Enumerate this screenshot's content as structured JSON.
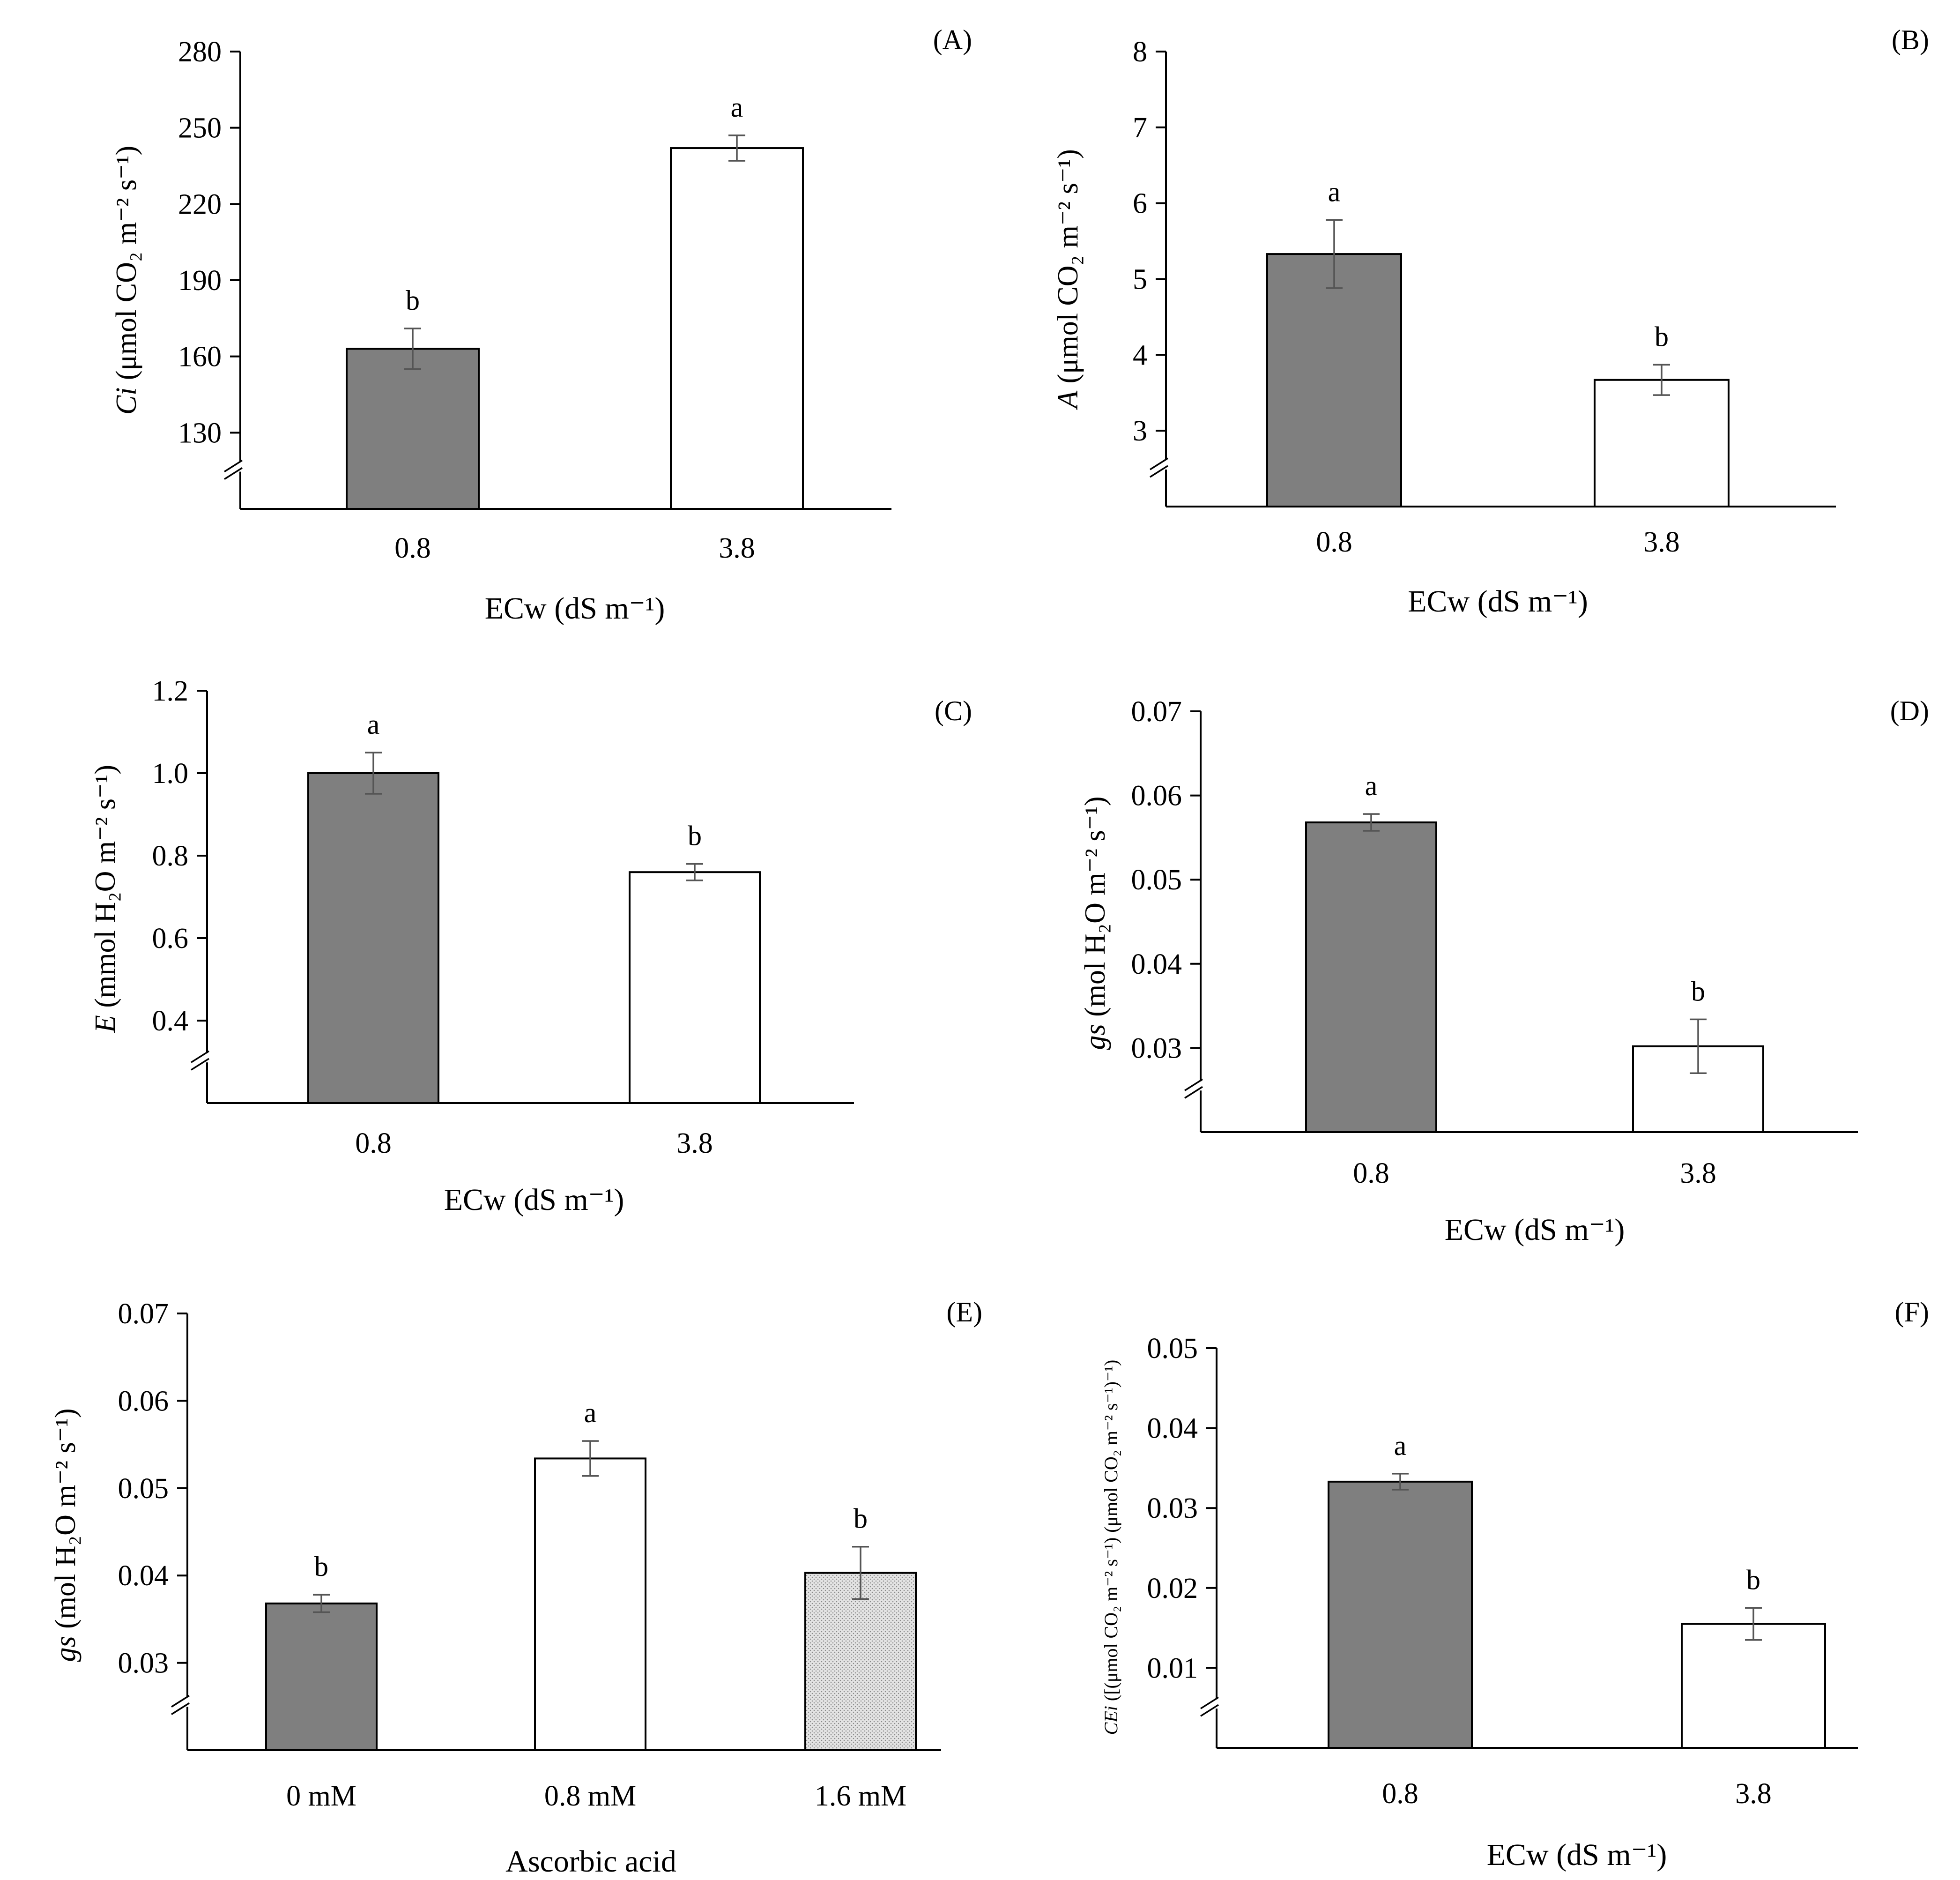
{
  "chart_data": [
    {
      "panel": "(A)",
      "type": "bar",
      "ylabel_var": "Ci",
      "ylabel_unit": "(μmol CO₂ m⁻² s⁻¹)",
      "xlabel": "ECw (dS m⁻¹)",
      "categories": [
        "0.8",
        "3.8"
      ],
      "values": [
        163,
        242
      ],
      "errors": [
        8,
        5
      ],
      "letters": [
        "b",
        "a"
      ],
      "fills": [
        "#7f7f7f",
        "#ffffff"
      ],
      "ylim": [
        100,
        280
      ],
      "yticks": [
        130,
        160,
        190,
        220,
        250,
        280
      ],
      "ytick_labels": [
        "130",
        "160",
        "190",
        "220",
        "250",
        "280"
      ]
    },
    {
      "panel": "(B)",
      "type": "bar",
      "ylabel_var": "A",
      "ylabel_unit": "(μmol CO₂ m⁻² s⁻¹)",
      "xlabel": "ECw (dS m⁻¹)",
      "categories": [
        "0.8",
        "3.8"
      ],
      "values": [
        5.33,
        3.67
      ],
      "errors": [
        0.45,
        0.2
      ],
      "letters": [
        "a",
        "b"
      ],
      "fills": [
        "#7f7f7f",
        "#ffffff"
      ],
      "ylim": [
        2,
        8
      ],
      "yticks": [
        3,
        4,
        5,
        6,
        7,
        8
      ],
      "ytick_labels": [
        "3",
        "4",
        "5",
        "6",
        "7",
        "8"
      ]
    },
    {
      "panel": "(C)",
      "type": "bar",
      "ylabel_var": "E",
      "ylabel_unit": "(mmol H₂O m⁻² s⁻¹)",
      "xlabel": "ECw (dS m⁻¹)",
      "categories": [
        "0.8",
        "3.8"
      ],
      "values": [
        1.0,
        0.76
      ],
      "errors": [
        0.05,
        0.02
      ],
      "letters": [
        "a",
        "b"
      ],
      "fills": [
        "#7f7f7f",
        "#ffffff"
      ],
      "ylim": [
        0.2,
        1.2
      ],
      "yticks": [
        0.4,
        0.6,
        0.8,
        1.0,
        1.2
      ],
      "ytick_labels": [
        "0.4",
        "0.6",
        "0.8",
        "1.0",
        "1.2"
      ]
    },
    {
      "panel": "(D)",
      "type": "bar",
      "ylabel_var": "gs",
      "ylabel_unit": "(mol H₂O m⁻² s⁻¹)",
      "xlabel": "ECw (dS m⁻¹)",
      "categories": [
        "0.8",
        "3.8"
      ],
      "values": [
        0.0568,
        0.0302
      ],
      "errors": [
        0.001,
        0.0032
      ],
      "letters": [
        "a",
        "b"
      ],
      "fills": [
        "#7f7f7f",
        "#ffffff"
      ],
      "ylim": [
        0.02,
        0.07
      ],
      "yticks": [
        0.03,
        0.04,
        0.05,
        0.06,
        0.07
      ],
      "ytick_labels": [
        "0.03",
        "0.04",
        "0.05",
        "0.06",
        "0.07"
      ]
    },
    {
      "panel": "(E)",
      "type": "bar",
      "ylabel_var": "gs",
      "ylabel_unit": "(mol H₂O m⁻² s⁻¹)",
      "xlabel": "Ascorbic acid",
      "categories": [
        "0 mM",
        "0.8 mM",
        "1.6 mM"
      ],
      "values": [
        0.0368,
        0.0534,
        0.0403
      ],
      "errors": [
        0.001,
        0.002,
        0.003
      ],
      "letters": [
        "b",
        "a",
        "b"
      ],
      "fills": [
        "#7f7f7f",
        "#ffffff",
        "#dcdcdc"
      ],
      "ylim": [
        0.02,
        0.07
      ],
      "yticks": [
        0.03,
        0.04,
        0.05,
        0.06,
        0.07
      ],
      "ytick_labels": [
        "0.03",
        "0.04",
        "0.05",
        "0.06",
        "0.07"
      ]
    },
    {
      "panel": "(F)",
      "type": "bar",
      "ylabel_var": "CEi",
      "ylabel_unit": "([(μmol CO₂ m⁻² s⁻¹) (μmol CO₂ m⁻² s⁻¹)⁻¹)",
      "xlabel": "ECw (dS m⁻¹)",
      "categories": [
        "0.8",
        "3.8"
      ],
      "values": [
        0.0333,
        0.0155
      ],
      "errors": [
        0.001,
        0.002
      ],
      "letters": [
        "a",
        "b"
      ],
      "fills": [
        "#7f7f7f",
        "#ffffff"
      ],
      "ylim": [
        0.0,
        0.05
      ],
      "yticks": [
        0.01,
        0.02,
        0.03,
        0.04,
        0.05
      ],
      "ytick_labels": [
        "0.01",
        "0.02",
        "0.03",
        "0.04",
        "0.05"
      ]
    }
  ]
}
